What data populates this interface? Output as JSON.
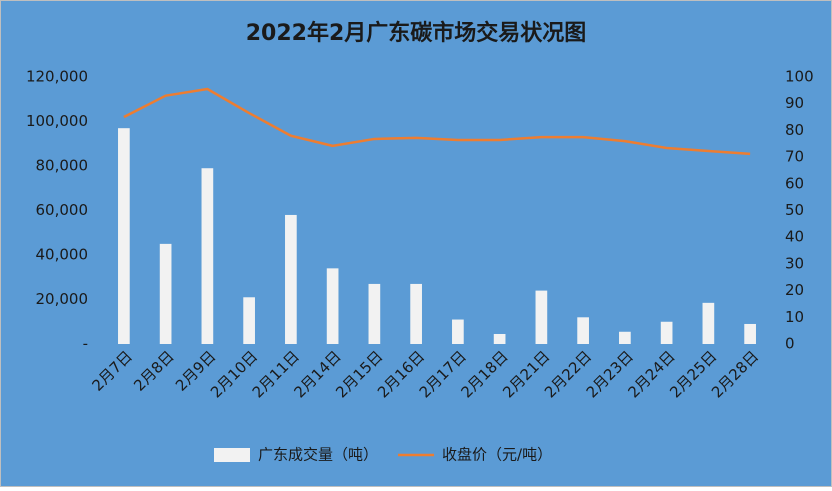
{
  "chart_data": {
    "type": "bar",
    "title": "2022年2月广东碳市场交易状况图",
    "categories": [
      "2月7日",
      "2月8日",
      "2月9日",
      "2月10日",
      "2月11日",
      "2月14日",
      "2月15日",
      "2月16日",
      "2月17日",
      "2月18日",
      "2月21日",
      "2月22日",
      "2月23日",
      "2月24日",
      "2月25日",
      "2月28日"
    ],
    "series": [
      {
        "name": "广东成交量（吨）",
        "type": "bar",
        "color": "#f2f2f2",
        "values": [
          97000,
          45000,
          79000,
          21000,
          58000,
          34000,
          27000,
          27000,
          11000,
          4500,
          24000,
          12000,
          5500,
          10000,
          18500,
          9000
        ]
      },
      {
        "name": "收盘价（元/吨）",
        "type": "line",
        "axis": "y2",
        "color": "#ed7d31",
        "values": [
          85,
          93,
          95.5,
          86.5,
          78,
          74.2,
          76.8,
          77.2,
          76.4,
          76.4,
          77.5,
          77.5,
          76,
          73.4,
          72.3,
          71.2
        ]
      }
    ],
    "ylim": [
      0,
      120000
    ],
    "yticks": [
      {
        "value": 0,
        "label": "-"
      },
      {
        "value": 20000,
        "label": "20,000"
      },
      {
        "value": 40000,
        "label": "40,000"
      },
      {
        "value": 60000,
        "label": "60,000"
      },
      {
        "value": 80000,
        "label": "80,000"
      },
      {
        "value": 100000,
        "label": "100,000"
      },
      {
        "value": 120000,
        "label": "120,000"
      }
    ],
    "y2lim": [
      0,
      100
    ],
    "y2ticks": [
      0,
      10,
      20,
      30,
      40,
      50,
      60,
      70,
      80,
      90,
      100
    ],
    "grid": false,
    "legend": "bottom",
    "background": "#5b9bd5"
  }
}
